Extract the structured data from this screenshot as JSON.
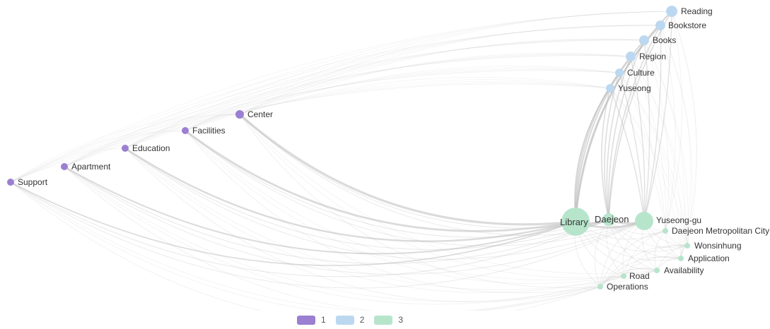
{
  "colors": {
    "group1": "#9b7fd1",
    "group2": "#bcd8f0",
    "group3": "#b7e5cc",
    "edge": "#bdbdbd"
  },
  "legend": [
    {
      "label": "1",
      "group": "group1"
    },
    {
      "label": "2",
      "group": "group2"
    },
    {
      "label": "3",
      "group": "group3"
    }
  ],
  "nodes": [
    {
      "id": "support",
      "label": "Support",
      "group": 1
    },
    {
      "id": "apartment",
      "label": "Apartment",
      "group": 1
    },
    {
      "id": "education",
      "label": "Education",
      "group": 1
    },
    {
      "id": "facilities",
      "label": "Facilities",
      "group": 1
    },
    {
      "id": "center",
      "label": "Center",
      "group": 1
    },
    {
      "id": "reading",
      "label": "Reading",
      "group": 2
    },
    {
      "id": "bookstore",
      "label": "Bookstore",
      "group": 2
    },
    {
      "id": "books",
      "label": "Books",
      "group": 2
    },
    {
      "id": "region",
      "label": "Region",
      "group": 2
    },
    {
      "id": "culture",
      "label": "Culture",
      "group": 2
    },
    {
      "id": "yuseong",
      "label": "Yuseong",
      "group": 2
    },
    {
      "id": "library",
      "label": "Library",
      "group": 3
    },
    {
      "id": "daejeon",
      "label": "Daejeon",
      "group": 3
    },
    {
      "id": "yuseonggu",
      "label": "Yuseong-gu",
      "group": 3
    },
    {
      "id": "dmc",
      "label": "Daejeon Metropolitan City",
      "group": 3
    },
    {
      "id": "wonsinhung",
      "label": "Wonsinhung",
      "group": 3
    },
    {
      "id": "application",
      "label": "Application",
      "group": 3
    },
    {
      "id": "availability",
      "label": "Availability",
      "group": 3
    },
    {
      "id": "road",
      "label": "Road",
      "group": 3
    },
    {
      "id": "operations",
      "label": "Operations",
      "group": 3
    }
  ]
}
